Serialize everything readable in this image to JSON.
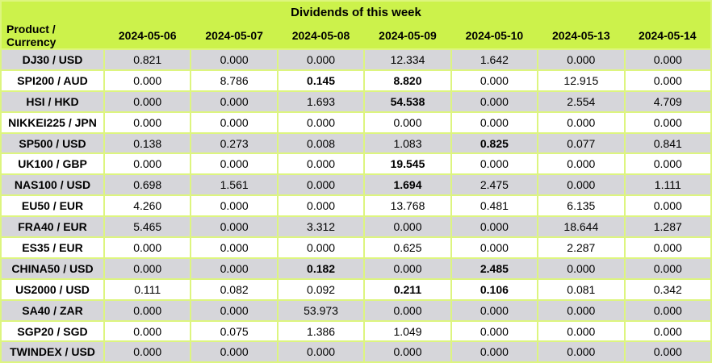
{
  "title": "Dividends of this week",
  "colors": {
    "header_bg": "#ccf24b",
    "grid_border": "#ddf57f",
    "row_alt_bg": "#d6d6da",
    "row_bg": "#ffffff",
    "text": "#000000"
  },
  "chart_data": {
    "type": "table",
    "title": "Dividends of this week",
    "row_header_label": "Product / Currency",
    "columns": [
      "2024-05-06",
      "2024-05-07",
      "2024-05-08",
      "2024-05-09",
      "2024-05-10",
      "2024-05-13",
      "2024-05-14"
    ],
    "value_decimals": 3,
    "rows": [
      {
        "product": "DJ30 / USD",
        "values": [
          0.821,
          0.0,
          0.0,
          12.334,
          1.642,
          0.0,
          0.0
        ],
        "bold_columns": []
      },
      {
        "product": "SPI200 / AUD",
        "values": [
          0.0,
          8.786,
          0.145,
          8.82,
          0.0,
          12.915,
          0.0
        ],
        "bold_columns": [
          2,
          3
        ]
      },
      {
        "product": "HSI / HKD",
        "values": [
          0.0,
          0.0,
          1.693,
          54.538,
          0.0,
          2.554,
          4.709
        ],
        "bold_columns": [
          3
        ]
      },
      {
        "product": "NIKKEI225 / JPN",
        "values": [
          0.0,
          0.0,
          0.0,
          0.0,
          0.0,
          0.0,
          0.0
        ],
        "bold_columns": []
      },
      {
        "product": "SP500 / USD",
        "values": [
          0.138,
          0.273,
          0.008,
          1.083,
          0.825,
          0.077,
          0.841
        ],
        "bold_columns": [
          4
        ]
      },
      {
        "product": "UK100 / GBP",
        "values": [
          0.0,
          0.0,
          0.0,
          19.545,
          0.0,
          0.0,
          0.0
        ],
        "bold_columns": [
          3
        ]
      },
      {
        "product": "NAS100 / USD",
        "values": [
          0.698,
          1.561,
          0.0,
          1.694,
          2.475,
          0.0,
          1.111
        ],
        "bold_columns": [
          3
        ]
      },
      {
        "product": "EU50 / EUR",
        "values": [
          4.26,
          0.0,
          0.0,
          13.768,
          0.481,
          6.135,
          0.0
        ],
        "bold_columns": []
      },
      {
        "product": "FRA40 / EUR",
        "values": [
          5.465,
          0.0,
          3.312,
          0.0,
          0.0,
          18.644,
          1.287
        ],
        "bold_columns": []
      },
      {
        "product": "ES35 / EUR",
        "values": [
          0.0,
          0.0,
          0.0,
          0.625,
          0.0,
          2.287,
          0.0
        ],
        "bold_columns": []
      },
      {
        "product": "CHINA50 / USD",
        "values": [
          0.0,
          0.0,
          0.182,
          0.0,
          2.485,
          0.0,
          0.0
        ],
        "bold_columns": [
          2,
          4
        ]
      },
      {
        "product": "US2000 / USD",
        "values": [
          0.111,
          0.082,
          0.092,
          0.211,
          0.106,
          0.081,
          0.342
        ],
        "bold_columns": [
          3,
          4
        ]
      },
      {
        "product": "SA40 / ZAR",
        "values": [
          0.0,
          0.0,
          53.973,
          0.0,
          0.0,
          0.0,
          0.0
        ],
        "bold_columns": []
      },
      {
        "product": "SGP20 / SGD",
        "values": [
          0.0,
          0.075,
          1.386,
          1.049,
          0.0,
          0.0,
          0.0
        ],
        "bold_columns": []
      },
      {
        "product": "TWINDEX / USD",
        "values": [
          0.0,
          0.0,
          0.0,
          0.0,
          0.0,
          0.0,
          0.0
        ],
        "bold_columns": []
      }
    ]
  }
}
